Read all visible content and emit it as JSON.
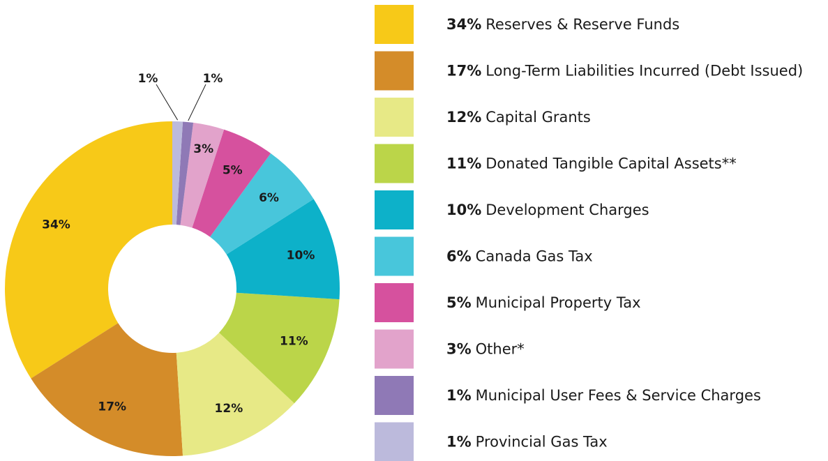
{
  "chart_data": {
    "type": "donut",
    "categories": [
      "Reserves & Reserve Funds",
      "Long-Term Liabilities Incurred (Debt Issued)",
      "Capital Grants",
      "Donated Tangible Capital Assets**",
      "Development Charges",
      "Canada Gas Tax",
      "Municipal Property Tax",
      "Other*",
      "Municipal User Fees & Service Charges",
      "Provincial Gas Tax"
    ],
    "values": [
      34,
      17,
      12,
      11,
      10,
      6,
      5,
      3,
      1,
      1
    ],
    "value_labels": [
      "34%",
      "17%",
      "12%",
      "11%",
      "10%",
      "6%",
      "5%",
      "3%",
      "1%",
      "1%"
    ],
    "colors": [
      "#f7c918",
      "#d48c29",
      "#e7e986",
      "#bbd549",
      "#0db1c9",
      "#48c6db",
      "#d6519e",
      "#e2a3cb",
      "#8f79b6",
      "#bcbadc"
    ],
    "legend": "right"
  }
}
